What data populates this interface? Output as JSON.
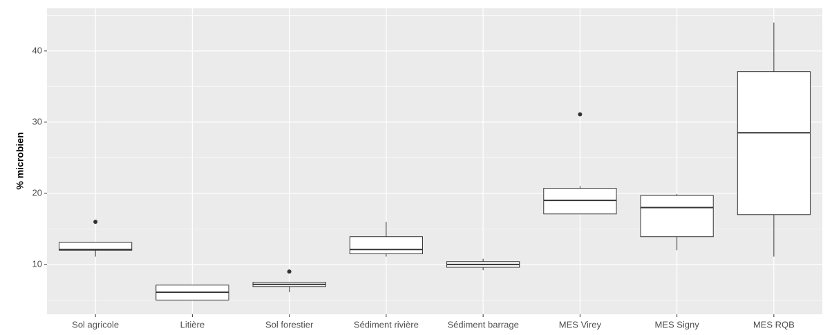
{
  "chart_data": {
    "type": "box",
    "y_label": "% microbien",
    "categories": [
      "Sol agricole",
      "Litière",
      "Sol forestier",
      "Sédiment rivière",
      "Sédiment barrage",
      "MES Virey",
      "MES Signy",
      "MES RQB"
    ],
    "boxes": [
      {
        "whisker_low": 11.1,
        "q1": 12.0,
        "median": 12.1,
        "q3": 13.1,
        "whisker_high": 13.1,
        "outliers": [
          16.0
        ]
      },
      {
        "whisker_low": 5.0,
        "q1": 5.0,
        "median": 6.1,
        "q3": 7.1,
        "whisker_high": 7.1,
        "outliers": []
      },
      {
        "whisker_low": 6.1,
        "q1": 6.9,
        "median": 7.2,
        "q3": 7.5,
        "whisker_high": 7.5,
        "outliers": [
          9.0
        ]
      },
      {
        "whisker_low": 11.1,
        "q1": 11.5,
        "median": 12.1,
        "q3": 13.9,
        "whisker_high": 16.0,
        "outliers": []
      },
      {
        "whisker_low": 9.2,
        "q1": 9.6,
        "median": 10.0,
        "q3": 10.4,
        "whisker_high": 10.8,
        "outliers": []
      },
      {
        "whisker_low": 17.1,
        "q1": 17.1,
        "median": 19.0,
        "q3": 20.7,
        "whisker_high": 21.0,
        "outliers": [
          31.1
        ]
      },
      {
        "whisker_low": 12.0,
        "q1": 13.9,
        "median": 18.0,
        "q3": 19.7,
        "whisker_high": 19.9,
        "outliers": []
      },
      {
        "whisker_low": 11.1,
        "q1": 17.0,
        "median": 28.5,
        "q3": 37.1,
        "whisker_high": 44.0,
        "outliers": []
      }
    ],
    "box_fill": "#ffffff",
    "box_stroke": "#333333",
    "ylim": [
      3,
      46
    ],
    "yticks": [
      10,
      20,
      30,
      40
    ],
    "minor_yticks": [
      5,
      15,
      25,
      35,
      45
    ],
    "grid": true
  }
}
